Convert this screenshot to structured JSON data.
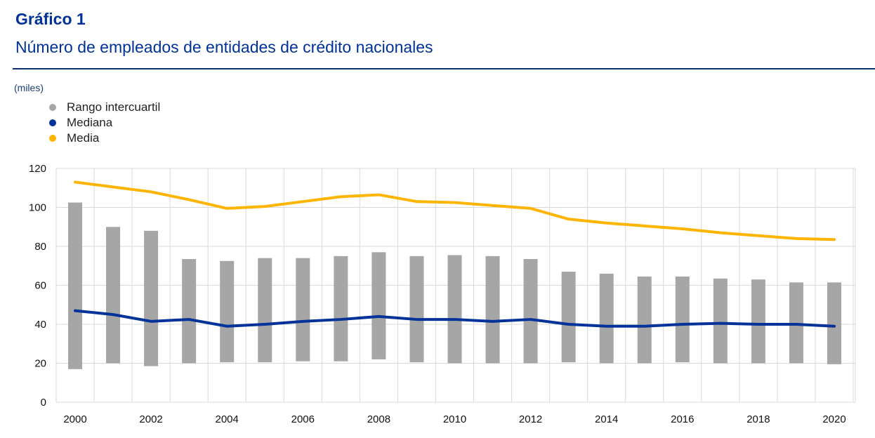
{
  "header": {
    "label": "Gráfico 1",
    "title": "Número de empleados de entidades de crédito nacionales"
  },
  "unit_label": "(miles)",
  "legend": [
    {
      "name": "Rango intercuartil",
      "color": "#a6a6a6"
    },
    {
      "name": "Mediana",
      "color": "#003299"
    },
    {
      "name": "Media",
      "color": "#ffb400"
    }
  ],
  "chart_data": {
    "type": "bar",
    "title": "Número de empleados de entidades de crédito nacionales",
    "ylabel": "(miles)",
    "ylim": [
      0,
      120
    ],
    "yticks": [
      0,
      20,
      40,
      60,
      80,
      100,
      120
    ],
    "x": [
      2000,
      2001,
      2002,
      2003,
      2004,
      2005,
      2006,
      2007,
      2008,
      2009,
      2010,
      2011,
      2012,
      2013,
      2014,
      2015,
      2016,
      2017,
      2018,
      2019,
      2020
    ],
    "xtick_labels": [
      "2000",
      "2002",
      "2004",
      "2006",
      "2008",
      "2010",
      "2012",
      "2014",
      "2016",
      "2018",
      "2020"
    ],
    "grid": true,
    "legend_position": "top-left",
    "series": [
      {
        "name": "Rango intercuartil",
        "type": "floating-bar",
        "color": "#a6a6a6",
        "low": [
          17,
          20,
          18.5,
          20,
          20.5,
          20.5,
          21,
          21,
          22,
          20.5,
          20,
          20,
          20,
          20.5,
          20,
          20,
          20.5,
          20,
          20,
          20,
          19.5
        ],
        "high": [
          102.5,
          90,
          88,
          73.5,
          72.5,
          74,
          74,
          75,
          77,
          75,
          75.5,
          75,
          73.5,
          67,
          66,
          64.5,
          64.5,
          63.5,
          63,
          61.5,
          61.5
        ]
      },
      {
        "name": "Mediana",
        "type": "line",
        "color": "#003299",
        "values": [
          47,
          45,
          41.5,
          42.5,
          39,
          40,
          41.5,
          42.5,
          44,
          42.5,
          42.5,
          41.5,
          42.5,
          40,
          39,
          39,
          40,
          40.5,
          40,
          40,
          39
        ]
      },
      {
        "name": "Media",
        "type": "line",
        "color": "#ffb400",
        "values": [
          113,
          110.5,
          108,
          104,
          99.5,
          100.5,
          103,
          105.5,
          106.5,
          103,
          102.5,
          101,
          99.5,
          94,
          92,
          90.5,
          89,
          87,
          85.5,
          84,
          83.5
        ]
      }
    ]
  }
}
